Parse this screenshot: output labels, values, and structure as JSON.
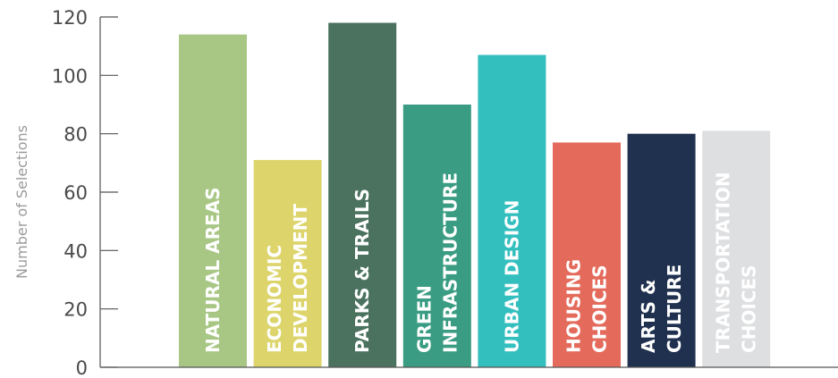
{
  "chart_data": {
    "type": "bar",
    "title": "",
    "xlabel": "",
    "ylabel": "Number of Selections",
    "ylim": [
      0,
      120
    ],
    "yticks": [
      0,
      20,
      40,
      60,
      80,
      100,
      120
    ],
    "grid": false,
    "legend": "none",
    "categories": [
      "NATURAL AREAS",
      "ECONOMIC DEVELOPMENT",
      "PARKS & TRAILS",
      "GREEN INFRASTRUCTURE",
      "URBAN DESIGN",
      "HOUSING CHOICES",
      "ARTS & CULTURE",
      "TRANSPORTATION CHOICES"
    ],
    "label_lines": [
      [
        "NATURAL AREAS"
      ],
      [
        "ECONOMIC",
        "DEVELOPMENT"
      ],
      [
        "PARKS & TRAILS"
      ],
      [
        "GREEN",
        "INFRASTRUCTURE"
      ],
      [
        "URBAN DESIGN"
      ],
      [
        "HOUSING",
        "CHOICES"
      ],
      [
        "ARTS &",
        "CULTURE"
      ],
      [
        "TRANSPORTATION",
        "CHOICES"
      ]
    ],
    "values": [
      114,
      71,
      118,
      90,
      107,
      77,
      80,
      81
    ],
    "colors": [
      "#a8c785",
      "#ddd56c",
      "#4a725e",
      "#3a9c83",
      "#34bfbf",
      "#e46b5c",
      "#20314f",
      "#dedfe1"
    ]
  }
}
